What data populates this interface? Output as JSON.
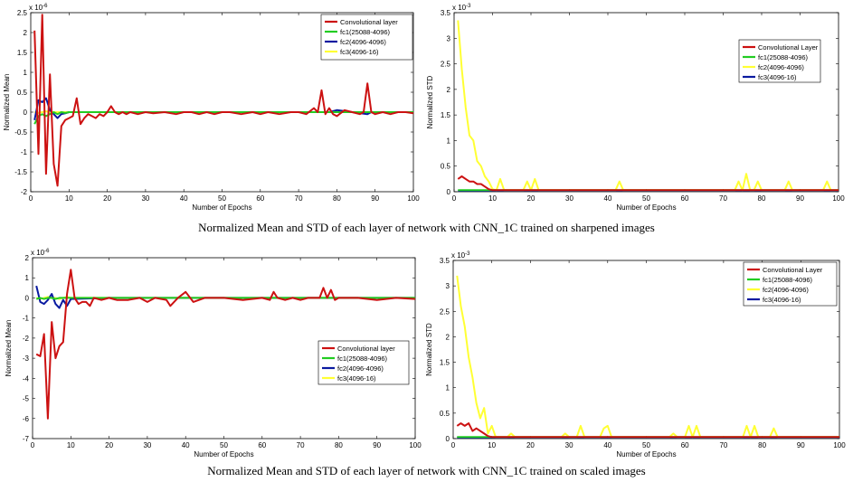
{
  "captions": {
    "top": "Normalized Mean and STD of each layer of network with  CNN_1C trained on sharpened images",
    "bottom": "Normalized Mean and STD of each layer of network with  CNN_1C trained on scaled images"
  },
  "colors": {
    "conv": "#cc1111",
    "fc1": "#22cc22",
    "fc2_mean": "#0a1aa0",
    "fc2_std": "#ffff33",
    "fc3_mean": "#ffff33",
    "fc3_std": "#0a1aa0"
  },
  "chart_data": [
    {
      "type": "line",
      "ylabel": "Normalized Mean",
      "xlabel": "Number of Epochs",
      "exponent": "x 10",
      "exponent_power": "-6",
      "xlim": [
        0,
        100
      ],
      "ylim": [
        -2,
        2.5
      ],
      "xticks": [
        0,
        10,
        20,
        30,
        40,
        50,
        60,
        70,
        80,
        90,
        100
      ],
      "yticks": [
        -2,
        -1.5,
        -1,
        -0.5,
        0,
        0.5,
        1,
        1.5,
        2,
        2.5
      ],
      "legend_position": "top-right",
      "legend": [
        "Convolutional layer",
        "fc1(25088-4096)",
        "fc2(4096-4096)",
        "fc3(4096-16)"
      ],
      "series": [
        {
          "name": "Convolutional layer",
          "color_key": "conv",
          "x": [
            1,
            2,
            3,
            4,
            5,
            6,
            7,
            8,
            9,
            10,
            11,
            12,
            13,
            14,
            15,
            16,
            17,
            18,
            19,
            20,
            21,
            22,
            23,
            24,
            25,
            26,
            28,
            30,
            32,
            35,
            38,
            40,
            42,
            44,
            46,
            48,
            50,
            52,
            55,
            58,
            60,
            62,
            65,
            68,
            70,
            72,
            74,
            75,
            76,
            77,
            78,
            79,
            80,
            82,
            84,
            86,
            87,
            88,
            89,
            90,
            92,
            94,
            96,
            98,
            100
          ],
          "y": [
            2.05,
            -1.05,
            2.45,
            -1.55,
            0.95,
            -1.3,
            -1.85,
            -0.35,
            -0.2,
            -0.15,
            -0.1,
            0.35,
            -0.3,
            -0.15,
            -0.05,
            -0.1,
            -0.15,
            -0.05,
            -0.1,
            0.0,
            0.15,
            0.0,
            -0.05,
            0.0,
            -0.05,
            0.0,
            -0.05,
            0.0,
            -0.03,
            0.0,
            -0.05,
            0.0,
            0.0,
            -0.05,
            0.0,
            -0.05,
            0.0,
            0.0,
            -0.05,
            0.0,
            -0.05,
            0.0,
            -0.05,
            0.0,
            0.0,
            -0.05,
            0.1,
            0.0,
            0.55,
            -0.05,
            0.1,
            -0.05,
            -0.1,
            0.05,
            0.0,
            -0.05,
            0.0,
            0.72,
            0.0,
            -0.05,
            0.0,
            -0.05,
            0.0,
            0.0,
            -0.03
          ]
        },
        {
          "name": "fc1(25088-4096)",
          "color_key": "fc1",
          "x": [
            1,
            2,
            3,
            4,
            5,
            6,
            7,
            8,
            9,
            10,
            20,
            40,
            60,
            80,
            100
          ],
          "y": [
            -0.3,
            -0.1,
            -0.05,
            -0.1,
            -0.05,
            0.0,
            -0.05,
            0.0,
            -0.02,
            0.0,
            0.0,
            0.0,
            0.0,
            0.0,
            0.0
          ]
        },
        {
          "name": "fc2(4096-4096)",
          "color_key": "fc2_mean",
          "x": [
            1,
            2,
            3,
            4,
            5,
            6,
            7,
            8,
            9,
            10,
            20,
            40,
            60,
            78,
            80,
            88,
            89,
            100
          ],
          "y": [
            -0.2,
            0.3,
            0.25,
            0.35,
            0.05,
            -0.05,
            -0.15,
            -0.05,
            -0.03,
            0.0,
            0.0,
            0.0,
            0.0,
            0.0,
            0.05,
            -0.05,
            0.0,
            0.0
          ]
        },
        {
          "name": "fc3(4096-16)",
          "color_key": "fc3_mean",
          "x": [
            1,
            2,
            3,
            4,
            5,
            6,
            7,
            8,
            10,
            20,
            40,
            60,
            80,
            100
          ],
          "y": [
            0.0,
            -0.02,
            0.0,
            0.02,
            0.0,
            0.0,
            0.0,
            0.0,
            0.0,
            0.0,
            0.0,
            0.0,
            0.0,
            0.0
          ]
        }
      ]
    },
    {
      "type": "line",
      "ylabel": "Normalized STD",
      "xlabel": "Number of Epochs",
      "exponent": "x 10",
      "exponent_power": "-3",
      "xlim": [
        0,
        100
      ],
      "ylim": [
        0,
        3.5
      ],
      "xticks": [
        0,
        10,
        20,
        30,
        40,
        50,
        60,
        70,
        80,
        90,
        100
      ],
      "yticks": [
        0,
        0.5,
        1,
        1.5,
        2,
        2.5,
        3,
        3.5
      ],
      "legend_position": "upper-right",
      "legend": [
        "Convolutional Layer",
        "fc1(25088-4096)",
        "fc2(4096-4096)",
        "fc3(4096-16)"
      ],
      "series": [
        {
          "name": "Convolutional Layer",
          "color_key": "conv",
          "x": [
            1,
            2,
            3,
            4,
            5,
            6,
            7,
            8,
            9,
            10,
            100
          ],
          "y": [
            0.25,
            0.3,
            0.25,
            0.2,
            0.2,
            0.15,
            0.15,
            0.1,
            0.05,
            0.03,
            0.03
          ]
        },
        {
          "name": "fc1(25088-4096)",
          "color_key": "fc1",
          "x": [
            1,
            100
          ],
          "y": [
            0.03,
            0.03
          ]
        },
        {
          "name": "fc2(4096-4096)",
          "color_key": "fc2_std",
          "x": [
            1,
            2,
            3,
            4,
            5,
            6,
            7,
            8,
            9,
            10,
            11,
            12,
            13,
            14,
            18,
            19,
            20,
            21,
            22,
            23,
            42,
            43,
            44,
            73,
            74,
            75,
            76,
            77,
            78,
            79,
            80,
            86,
            87,
            88,
            89,
            96,
            97,
            98,
            99,
            100
          ],
          "y": [
            3.35,
            2.4,
            1.65,
            1.1,
            1.0,
            0.6,
            0.5,
            0.3,
            0.2,
            0.05,
            0.03,
            0.25,
            0.03,
            0.03,
            0.03,
            0.2,
            0.03,
            0.25,
            0.03,
            0.03,
            0.03,
            0.2,
            0.03,
            0.03,
            0.2,
            0.03,
            0.35,
            0.03,
            0.03,
            0.2,
            0.03,
            0.03,
            0.2,
            0.03,
            0.03,
            0.03,
            0.2,
            0.03,
            0.03,
            0.03
          ]
        },
        {
          "name": "fc3(4096-16)",
          "color_key": "fc3_std",
          "x": [
            1,
            100
          ],
          "y": [
            0.02,
            0.02
          ]
        }
      ]
    },
    {
      "type": "line",
      "ylabel": "Normalized Mean",
      "xlabel": "Number of Epochs",
      "exponent": "x 10",
      "exponent_power": "-6",
      "xlim": [
        0,
        100
      ],
      "ylim": [
        -7,
        2
      ],
      "xticks": [
        0,
        10,
        20,
        30,
        40,
        50,
        60,
        70,
        80,
        90,
        100
      ],
      "yticks": [
        -7,
        -6,
        -5,
        -4,
        -3,
        -2,
        -1,
        0,
        1,
        2
      ],
      "legend_position": "lower-right",
      "legend": [
        "Convolutional layer",
        "fc1(25088-4096)",
        "fc2(4096-4096)",
        "fc3(4096-16)"
      ],
      "series": [
        {
          "name": "Convolutional layer",
          "color_key": "conv",
          "x": [
            1,
            2,
            3,
            4,
            5,
            6,
            7,
            8,
            9,
            10,
            11,
            12,
            13,
            14,
            15,
            16,
            18,
            20,
            22,
            25,
            28,
            30,
            32,
            35,
            36,
            38,
            40,
            42,
            45,
            50,
            55,
            60,
            62,
            63,
            64,
            66,
            68,
            70,
            72,
            75,
            76,
            77,
            78,
            79,
            80,
            85,
            90,
            95,
            100
          ],
          "y": [
            -2.8,
            -2.9,
            -1.8,
            -6.0,
            -1.2,
            -3.0,
            -2.4,
            -2.2,
            0.2,
            1.4,
            0.0,
            -0.3,
            -0.2,
            -0.2,
            -0.4,
            0.0,
            -0.1,
            0.0,
            -0.1,
            -0.1,
            0.0,
            -0.2,
            0.0,
            -0.1,
            -0.4,
            0.0,
            0.3,
            -0.2,
            0.0,
            0.0,
            -0.1,
            0.0,
            -0.1,
            0.3,
            0.0,
            -0.1,
            0.0,
            -0.1,
            0.0,
            0.0,
            0.5,
            0.0,
            0.4,
            -0.1,
            0.0,
            0.0,
            -0.1,
            0.0,
            -0.05
          ]
        },
        {
          "name": "fc1(25088-4096)",
          "color_key": "fc1",
          "x": [
            1,
            2,
            3,
            4,
            5,
            6,
            7,
            8,
            9,
            10,
            20,
            40,
            60,
            80,
            100
          ],
          "y": [
            -0.05,
            0.0,
            -0.05,
            0.0,
            0.0,
            -0.05,
            0.0,
            0.0,
            0.0,
            0.0,
            0.0,
            0.0,
            0.0,
            0.0,
            0.0
          ]
        },
        {
          "name": "fc2(4096-4096)",
          "color_key": "fc2_mean",
          "x": [
            1,
            2,
            3,
            4,
            5,
            6,
            7,
            8,
            9,
            10,
            20,
            40,
            60,
            80,
            100
          ],
          "y": [
            0.6,
            -0.2,
            -0.3,
            -0.1,
            0.2,
            -0.3,
            -0.5,
            -0.1,
            -0.4,
            -0.05,
            0.0,
            0.0,
            0.0,
            0.0,
            0.0
          ]
        },
        {
          "name": "fc3(4096-16)",
          "color_key": "fc3_mean",
          "x": [
            1,
            2,
            3,
            4,
            5,
            6,
            7,
            8,
            9,
            10,
            20,
            40,
            60,
            80,
            100
          ],
          "y": [
            0.0,
            -0.05,
            0.0,
            0.05,
            0.0,
            0.0,
            -0.05,
            0.0,
            0.05,
            0.0,
            0.0,
            0.0,
            0.0,
            0.0,
            0.0
          ]
        }
      ]
    },
    {
      "type": "line",
      "ylabel": "Normalized STD",
      "xlabel": "Number of Epochs",
      "exponent": "x 10",
      "exponent_power": "-3",
      "xlim": [
        0,
        100
      ],
      "ylim": [
        0,
        3.5
      ],
      "xticks": [
        0,
        10,
        20,
        30,
        40,
        50,
        60,
        70,
        80,
        90,
        100
      ],
      "yticks": [
        0,
        0.5,
        1,
        1.5,
        2,
        2.5,
        3,
        3.5
      ],
      "legend_position": "top-right",
      "legend": [
        "Convolutional Layer",
        "fc1(25088-4096)",
        "fc2(4096-4096)",
        "fc3(4096-16)"
      ],
      "series": [
        {
          "name": "Convolutional Layer",
          "color_key": "conv",
          "x": [
            1,
            2,
            3,
            4,
            5,
            6,
            7,
            8,
            9,
            10,
            100
          ],
          "y": [
            0.25,
            0.3,
            0.25,
            0.3,
            0.15,
            0.2,
            0.15,
            0.1,
            0.05,
            0.03,
            0.03
          ]
        },
        {
          "name": "fc1(25088-4096)",
          "color_key": "fc1",
          "x": [
            1,
            100
          ],
          "y": [
            0.03,
            0.03
          ]
        },
        {
          "name": "fc2(4096-4096)",
          "color_key": "fc2_std",
          "x": [
            1,
            2,
            3,
            4,
            5,
            6,
            7,
            8,
            9,
            10,
            11,
            14,
            15,
            16,
            28,
            29,
            30,
            32,
            33,
            34,
            38,
            39,
            40,
            41,
            56,
            57,
            58,
            60,
            61,
            62,
            63,
            64,
            75,
            76,
            77,
            78,
            79,
            82,
            83,
            84,
            100
          ],
          "y": [
            3.2,
            2.6,
            2.2,
            1.6,
            1.2,
            0.7,
            0.4,
            0.6,
            0.1,
            0.25,
            0.03,
            0.03,
            0.1,
            0.03,
            0.03,
            0.1,
            0.03,
            0.03,
            0.25,
            0.03,
            0.03,
            0.2,
            0.25,
            0.03,
            0.03,
            0.1,
            0.03,
            0.03,
            0.25,
            0.03,
            0.25,
            0.03,
            0.03,
            0.25,
            0.03,
            0.25,
            0.03,
            0.03,
            0.2,
            0.03,
            0.03
          ]
        },
        {
          "name": "fc3(4096-16)",
          "color_key": "fc3_std",
          "x": [
            1,
            100
          ],
          "y": [
            0.02,
            0.02
          ]
        }
      ]
    }
  ]
}
